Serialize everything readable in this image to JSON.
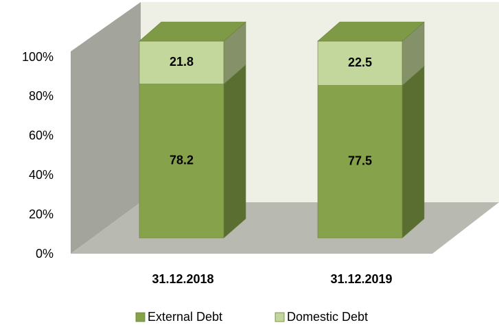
{
  "chart_data": {
    "type": "stacked_bar_3d",
    "categories": [
      "31.12.2018",
      "31.12.2019"
    ],
    "series": [
      {
        "name": "External Debt",
        "color": "#86a24a",
        "values": [
          78.2,
          77.5
        ]
      },
      {
        "name": "Domestic Debt",
        "color": "#c3d69b",
        "values": [
          21.8,
          22.5
        ]
      }
    ],
    "ylim": [
      0,
      100
    ],
    "yticks": [
      {
        "value": 0,
        "label": "0%"
      },
      {
        "value": 20,
        "label": "20%"
      },
      {
        "value": 40,
        "label": "40%"
      },
      {
        "value": 60,
        "label": "60%"
      },
      {
        "value": 80,
        "label": "80%"
      },
      {
        "value": 100,
        "label": "100%"
      }
    ],
    "legend": "bottom"
  }
}
